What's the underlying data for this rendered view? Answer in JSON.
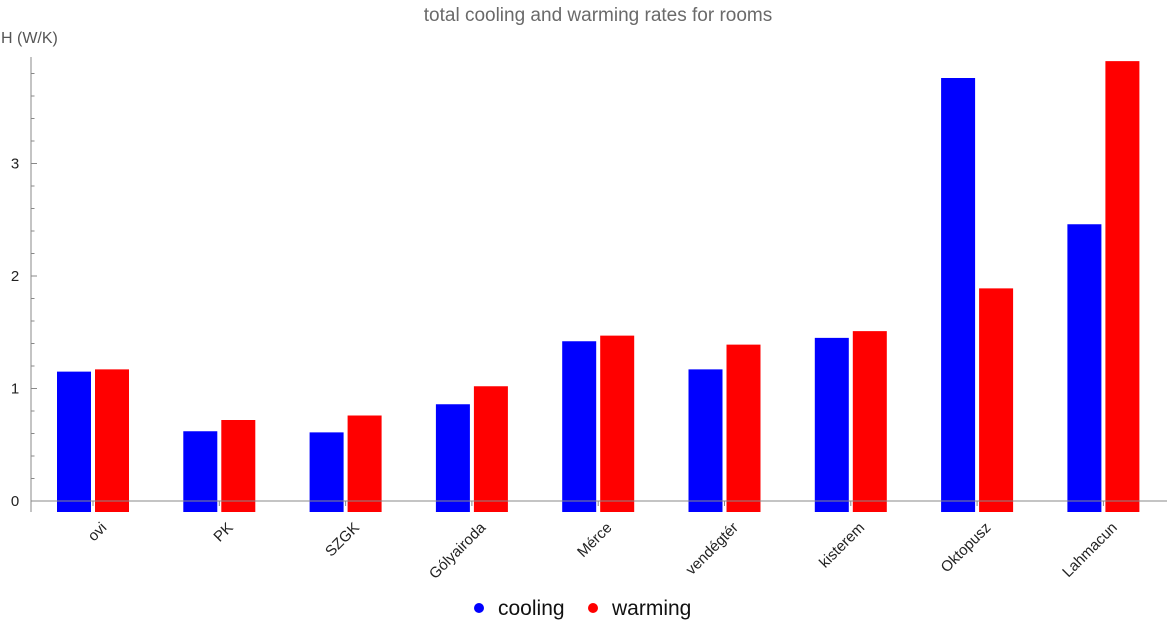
{
  "chart_data": {
    "type": "bar",
    "title": "total cooling and warming rates for rooms",
    "xlabel": "",
    "ylabel": "H (W/K)",
    "ylim": [
      -0.1,
      3.95
    ],
    "yticks": [
      0,
      1,
      2,
      3
    ],
    "categories": [
      "ovi",
      "PK",
      "SZGK",
      "Gólyairoda",
      "Mérce",
      "vendégtér",
      "kisterem",
      "Oktopusz",
      "Lahmacun"
    ],
    "series": [
      {
        "name": "cooling",
        "color": "#0000ff",
        "values": [
          1.15,
          0.62,
          0.61,
          0.86,
          1.42,
          1.17,
          1.45,
          3.76,
          2.46
        ]
      },
      {
        "name": "warming",
        "color": "#ff0000",
        "values": [
          1.17,
          0.72,
          0.76,
          1.02,
          1.47,
          1.39,
          1.51,
          1.89,
          3.91
        ]
      }
    ],
    "grid": false,
    "legend_position": "bottom-center"
  }
}
